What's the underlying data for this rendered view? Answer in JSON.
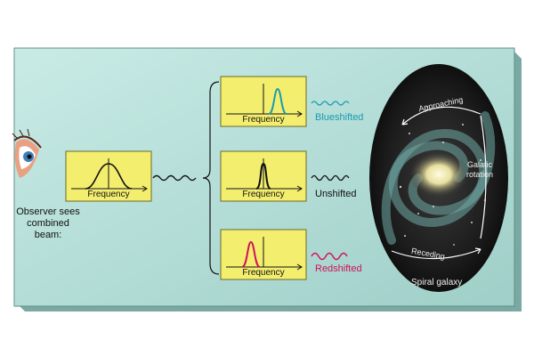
{
  "observer": {
    "caption": "Observer sees\ncombined beam:"
  },
  "combined_panel": {
    "axis_label": "Frequency"
  },
  "panels": [
    {
      "id": "blue",
      "axis_label": "Frequency",
      "shift_label": "Blueshifted",
      "color": "#1a9bb0"
    },
    {
      "id": "none",
      "axis_label": "Frequency",
      "shift_label": "Unshifted",
      "color": "#111111"
    },
    {
      "id": "red",
      "axis_label": "Frequency",
      "shift_label": "Redshifted",
      "color": "#d0105a"
    }
  ],
  "galaxy": {
    "approaching": "Approaching",
    "receding": "Receding",
    "rotation": "Galatic\nrotation",
    "name": "Spiral galaxy"
  },
  "colors": {
    "background_panel": "#b9e0dc",
    "panel_fill": "#f4ee6e",
    "panel_border": "#6a6a2a"
  }
}
